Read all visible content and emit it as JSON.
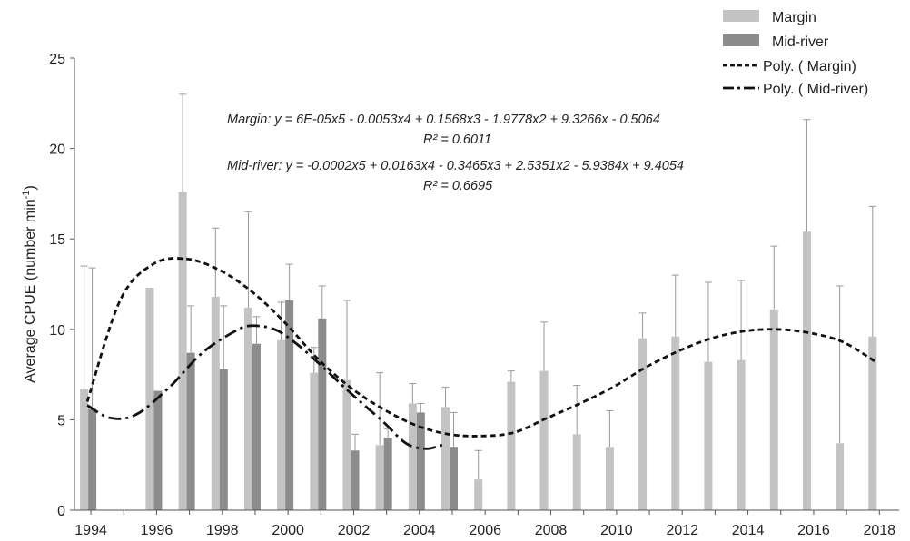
{
  "chart_data": {
    "type": "bar",
    "ylabel": "Average CPUE (number min",
    "ylabel_sup": "-1",
    "ylabel_close": ")",
    "ylim": [
      0,
      25
    ],
    "yticks": [
      0,
      5,
      10,
      15,
      20,
      25
    ],
    "xlim": [
      1993.5,
      2018.6
    ],
    "xticks": [
      1994,
      1996,
      1998,
      2000,
      2002,
      2004,
      2006,
      2008,
      2010,
      2012,
      2014,
      2016,
      2018
    ],
    "grid": false,
    "legend": {
      "placement": "top-right",
      "items": [
        {
          "label": "Margin",
          "kind": "bar",
          "color": "#c3c3c3"
        },
        {
          "label": "Mid-river",
          "kind": "bar",
          "color": "#8c8c8c"
        },
        {
          "label": "Poly. ( Margin)",
          "kind": "dash"
        },
        {
          "label": "Poly. ( Mid-river)",
          "kind": "dashdot"
        }
      ]
    },
    "series": [
      {
        "name": "Margin",
        "color": "#c3c3c3",
        "x": [
          1994,
          1996,
          1997,
          1998,
          1999,
          2000,
          2001,
          2002,
          2003,
          2004,
          2005,
          2006,
          2007,
          2008,
          2009,
          2010,
          2011,
          2012,
          2013,
          2014,
          2015,
          2016,
          2017,
          2018
        ],
        "values": [
          6.7,
          12.3,
          17.6,
          11.8,
          11.2,
          9.4,
          7.6,
          7.2,
          3.6,
          5.9,
          5.7,
          1.7,
          7.1,
          7.7,
          4.2,
          3.5,
          9.5,
          9.6,
          8.2,
          8.3,
          11.1,
          15.4,
          3.7,
          9.6
        ],
        "error_top": [
          13.5,
          null,
          23.0,
          15.6,
          16.5,
          11.5,
          9.0,
          11.6,
          7.6,
          7.0,
          6.8,
          3.3,
          7.7,
          10.4,
          6.9,
          5.5,
          10.9,
          13.0,
          12.6,
          12.7,
          14.6,
          21.6,
          12.4,
          16.8
        ]
      },
      {
        "name": "Mid-river",
        "color": "#8c8c8c",
        "x": [
          1994,
          1996,
          1997,
          1998,
          1999,
          2000,
          2001,
          2002,
          2003,
          2004,
          2005
        ],
        "values": [
          5.6,
          6.6,
          8.7,
          7.8,
          9.2,
          11.6,
          10.6,
          3.3,
          4.0,
          5.4,
          3.5
        ],
        "error_top": [
          13.4,
          null,
          11.3,
          11.3,
          10.7,
          13.6,
          12.4,
          4.2,
          4.5,
          5.9,
          5.4
        ]
      }
    ],
    "trendlines": [
      {
        "name": "Poly. ( Margin)",
        "style": "dash",
        "x": [
          1994,
          1995,
          1996,
          1997,
          1998,
          1999,
          2000,
          2001,
          2002,
          2003,
          2004,
          2005,
          2006,
          2007,
          2008,
          2009,
          2010,
          2011,
          2012,
          2013,
          2014,
          2015,
          2016,
          2017,
          2018
        ],
        "y": [
          6.0,
          11.6,
          13.6,
          13.9,
          13.3,
          12.1,
          10.4,
          8.4,
          6.8,
          5.6,
          4.7,
          4.2,
          4.1,
          4.3,
          5.1,
          5.9,
          6.8,
          7.9,
          8.8,
          9.5,
          9.9,
          10.0,
          9.8,
          9.3,
          8.2
        ]
      },
      {
        "name": "Poly. ( Mid-river)",
        "style": "dashdot",
        "x": [
          1994,
          1994.7,
          1995.5,
          1996.5,
          1997.5,
          1998.5,
          1999,
          1999.7,
          2000.3,
          2001,
          2002,
          2003,
          2003.7,
          2004.3,
          2004.8
        ],
        "y": [
          5.8,
          5.1,
          5.3,
          6.8,
          8.7,
          9.9,
          10.2,
          10.0,
          9.3,
          8.2,
          6.5,
          4.9,
          3.7,
          3.4,
          3.6
        ]
      }
    ],
    "annotations": {
      "margin_eq": "Margin: y = 6E-05x5 - 0.0053x4 + 0.1568x3 - 1.9778x2 + 9.3266x - 0.5064",
      "margin_r2": "R² = 0.6011",
      "mid_eq": "Mid-river: y = -0.0002x5 + 0.0163x4 - 0.3465x3 + 2.5351x2 - 5.9384x + 9.4054",
      "mid_r2": "R² = 0.6695"
    }
  }
}
